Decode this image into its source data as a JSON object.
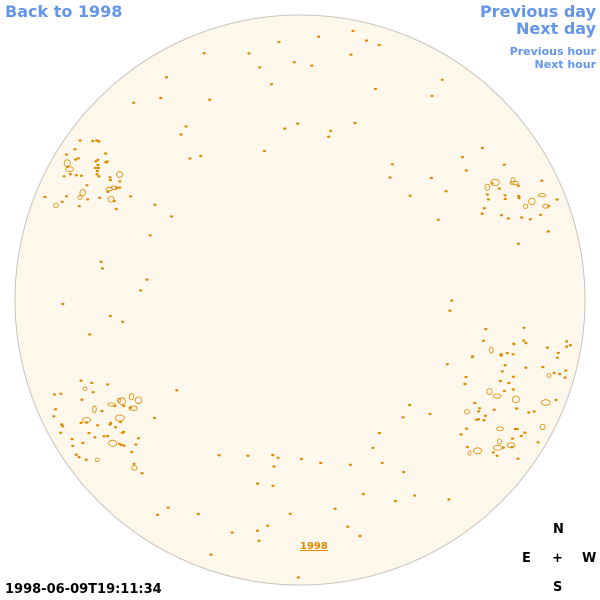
{
  "nav": {
    "back": "Back to 1998",
    "previous_day": "Previous day",
    "next_day": "Next day",
    "previous_hour": "Previous hour",
    "next_hour": "Next hour"
  },
  "disk_label": "1998",
  "timestamp": "1998-06-09T19:11:34",
  "compass": {
    "north": "N",
    "east": "E",
    "center": "+",
    "west": "W",
    "south": "S"
  }
}
